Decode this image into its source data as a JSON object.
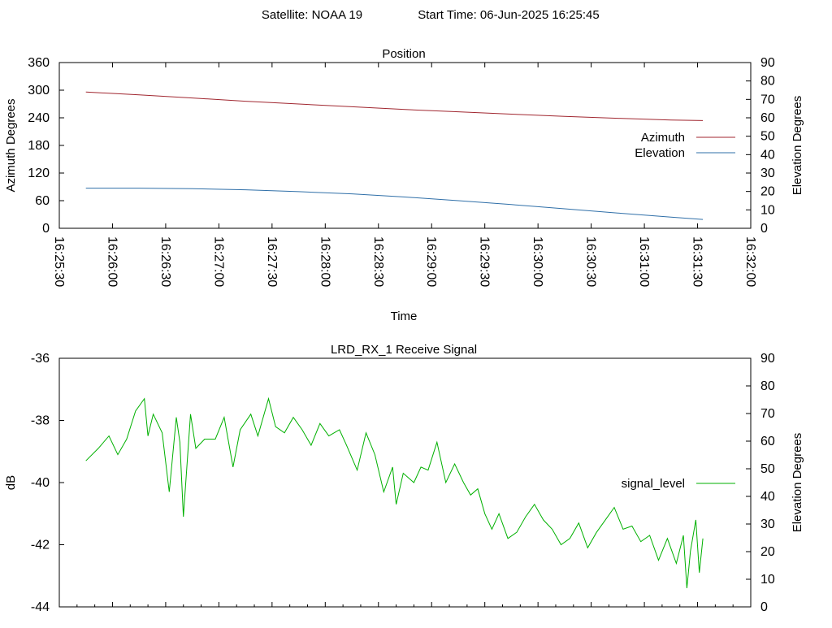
{
  "header": {
    "satellite_label": "Satellite: NOAA 19",
    "start_time_label": "Start Time: 06-Jun-2025 16:25:45"
  },
  "colors": {
    "azimuth": "#a0262f",
    "elevation": "#2f6fa8",
    "signal_level": "#00b000"
  },
  "chart_data": [
    {
      "type": "line",
      "title": "Position",
      "xlabel": "Time",
      "ylabel": "Azimuth Degrees",
      "y2label": "Elevation Degrees",
      "xlim": [
        "16:25:30",
        "16:32:00"
      ],
      "ylim": [
        0,
        360
      ],
      "y2lim": [
        0,
        90
      ],
      "x_ticks": [
        "16:25:30",
        "16:26:00",
        "16:26:30",
        "16:27:00",
        "16:27:30",
        "16:28:00",
        "16:28:30",
        "16:29:00",
        "16:29:30",
        "16:30:00",
        "16:30:30",
        "16:31:00",
        "16:31:30",
        "16:32:00"
      ],
      "y_ticks": [
        0,
        60,
        120,
        180,
        240,
        300,
        360
      ],
      "y2_ticks": [
        0,
        10,
        20,
        30,
        40,
        50,
        60,
        70,
        80,
        90
      ],
      "legend_position": "right",
      "series": [
        {
          "name": "Azimuth",
          "axis": "y",
          "color": "#a0262f",
          "x": [
            "16:25:45",
            "16:26:15",
            "16:26:45",
            "16:27:15",
            "16:27:45",
            "16:28:15",
            "16:28:45",
            "16:29:15",
            "16:29:45",
            "16:30:15",
            "16:30:45",
            "16:31:15",
            "16:31:33"
          ],
          "y": [
            296,
            290,
            283,
            276,
            270,
            264,
            258,
            253,
            248,
            243,
            239,
            235,
            234
          ]
        },
        {
          "name": "Elevation",
          "axis": "y2",
          "color": "#2f6fa8",
          "x": [
            "16:25:45",
            "16:26:15",
            "16:26:45",
            "16:27:15",
            "16:27:45",
            "16:28:15",
            "16:28:45",
            "16:29:15",
            "16:29:45",
            "16:30:15",
            "16:30:45",
            "16:31:15",
            "16:31:33"
          ],
          "y": [
            21.8,
            21.8,
            21.5,
            20.9,
            19.9,
            18.7,
            17.0,
            15.0,
            12.9,
            10.6,
            8.3,
            6.1,
            4.8
          ]
        }
      ]
    },
    {
      "type": "line",
      "title": "LRD_RX_1 Receive Signal",
      "ylabel": "dB",
      "y2label": "Elevation Degrees",
      "xlim": [
        "16:25:30",
        "16:32:00"
      ],
      "ylim": [
        -44,
        -36
      ],
      "y2lim": [
        0,
        90
      ],
      "y_ticks": [
        -44,
        -42,
        -40,
        -38,
        -36
      ],
      "y2_ticks": [
        0,
        10,
        20,
        30,
        40,
        50,
        60,
        70,
        80,
        90
      ],
      "legend_position": "right",
      "series": [
        {
          "name": "signal_level",
          "axis": "y",
          "color": "#00b000",
          "x": [
            "16:25:45",
            "16:25:52",
            "16:25:58",
            "16:26:03",
            "16:26:08",
            "16:26:13",
            "16:26:18",
            "16:26:20",
            "16:26:23",
            "16:26:28",
            "16:26:32",
            "16:26:36",
            "16:26:38",
            "16:26:40",
            "16:26:44",
            "16:26:47",
            "16:26:52",
            "16:26:58",
            "16:27:03",
            "16:27:08",
            "16:27:12",
            "16:27:18",
            "16:27:22",
            "16:27:28",
            "16:27:32",
            "16:27:37",
            "16:27:42",
            "16:27:47",
            "16:27:52",
            "16:27:57",
            "16:28:02",
            "16:28:08",
            "16:28:12",
            "16:28:18",
            "16:28:23",
            "16:28:28",
            "16:28:33",
            "16:28:38",
            "16:28:40",
            "16:28:44",
            "16:28:50",
            "16:28:54",
            "16:28:58",
            "16:29:03",
            "16:29:08",
            "16:29:13",
            "16:29:18",
            "16:29:22",
            "16:29:26",
            "16:29:30",
            "16:29:34",
            "16:29:38",
            "16:29:43",
            "16:29:48",
            "16:29:53",
            "16:29:58",
            "16:30:03",
            "16:30:08",
            "16:30:13",
            "16:30:18",
            "16:30:23",
            "16:30:28",
            "16:30:33",
            "16:30:38",
            "16:30:43",
            "16:30:48",
            "16:30:53",
            "16:30:58",
            "16:31:03",
            "16:31:08",
            "16:31:13",
            "16:31:18",
            "16:31:22",
            "16:31:24",
            "16:31:26",
            "16:31:29",
            "16:31:31",
            "16:31:33"
          ],
          "y": [
            -39.3,
            -38.9,
            -38.5,
            -39.1,
            -38.6,
            -37.7,
            -37.3,
            -38.5,
            -37.8,
            -38.4,
            -40.3,
            -37.9,
            -38.7,
            -41.1,
            -37.8,
            -38.9,
            -38.6,
            -38.6,
            -37.9,
            -39.5,
            -38.3,
            -37.8,
            -38.5,
            -37.3,
            -38.2,
            -38.4,
            -37.9,
            -38.3,
            -38.8,
            -38.1,
            -38.5,
            -38.3,
            -38.8,
            -39.6,
            -38.4,
            -39.1,
            -40.3,
            -39.5,
            -40.7,
            -39.7,
            -40.0,
            -39.5,
            -39.6,
            -38.7,
            -40.0,
            -39.4,
            -40.0,
            -40.4,
            -40.2,
            -41.0,
            -41.5,
            -41.0,
            -41.8,
            -41.6,
            -41.1,
            -40.7,
            -41.2,
            -41.5,
            -42.0,
            -41.8,
            -41.3,
            -42.1,
            -41.6,
            -41.2,
            -40.8,
            -41.5,
            -41.4,
            -41.9,
            -41.7,
            -42.5,
            -41.8,
            -42.6,
            -41.7,
            -43.4,
            -42.2,
            -41.2,
            -42.9,
            -41.8
          ]
        }
      ]
    }
  ]
}
